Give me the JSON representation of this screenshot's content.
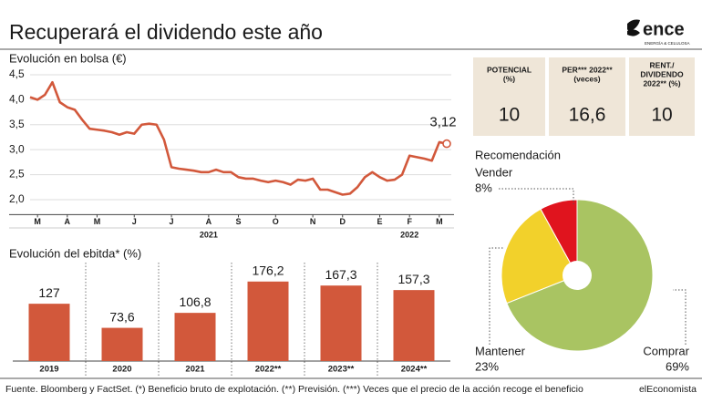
{
  "title": "Recuperará el dividendo este año",
  "logo": {
    "name": "ence",
    "tagline": "ENERGÍA & CELULOSA"
  },
  "metrics": [
    {
      "label": [
        "POTENCIAL",
        "(%)"
      ],
      "value": "10"
    },
    {
      "label": [
        "PER*** 2022**",
        "(veces)"
      ],
      "value": "16,6"
    },
    {
      "label": [
        "RENT./",
        "DIVIDENDO",
        "2022** (%)"
      ],
      "value": "10"
    }
  ],
  "footer": {
    "source": "Fuente. Bloomberg y FactSet. (*) Beneficio bruto de explotación. (**) Previsión. (***) Veces que el precio de la acción recoge el beneficio",
    "brand": "elEconomista"
  },
  "chart_data": [
    {
      "type": "line",
      "title": "Evolución en bolsa (€)",
      "color": "#d2583b",
      "grid": true,
      "values": [
        4.05,
        4.0,
        4.1,
        4.35,
        3.95,
        3.85,
        3.8,
        3.6,
        3.42,
        3.4,
        3.38,
        3.35,
        3.3,
        3.35,
        3.32,
        3.5,
        3.52,
        3.5,
        3.2,
        2.65,
        2.62,
        2.6,
        2.58,
        2.55,
        2.55,
        2.6,
        2.55,
        2.55,
        2.45,
        2.42,
        2.42,
        2.38,
        2.35,
        2.38,
        2.35,
        2.3,
        2.4,
        2.38,
        2.42,
        2.2,
        2.2,
        2.15,
        2.1,
        2.12,
        2.25,
        2.45,
        2.55,
        2.45,
        2.38,
        2.4,
        2.5,
        2.88,
        2.85,
        2.82,
        2.78,
        3.15,
        3.12
      ],
      "last_label": "3,12",
      "xlim": [
        0,
        56
      ],
      "xticks": [
        {
          "value": 1,
          "label": "M"
        },
        {
          "value": 5,
          "label": "A"
        },
        {
          "value": 9,
          "label": "M"
        },
        {
          "value": 14,
          "label": "J"
        },
        {
          "value": 19,
          "label": "J"
        },
        {
          "value": 24,
          "label": "A"
        },
        {
          "value": 28,
          "label": "S"
        },
        {
          "value": 33,
          "label": "O"
        },
        {
          "value": 38,
          "label": "N"
        },
        {
          "value": 42,
          "label": "D"
        },
        {
          "value": 47,
          "label": "E"
        },
        {
          "value": 51,
          "label": "F"
        },
        {
          "value": 55,
          "label": "M"
        }
      ],
      "year_ticks": [
        {
          "value": 24,
          "label": "2021"
        },
        {
          "value": 51,
          "label": "2022"
        }
      ],
      "ylim": [
        1.7,
        4.6
      ],
      "yticks": [
        {
          "value": 2.0,
          "label": "2,0"
        },
        {
          "value": 2.5,
          "label": "2,5"
        },
        {
          "value": 3.0,
          "label": "3,0"
        },
        {
          "value": 3.5,
          "label": "3,5"
        },
        {
          "value": 4.0,
          "label": "4,0"
        },
        {
          "value": 4.5,
          "label": "4,5"
        }
      ]
    },
    {
      "type": "bar",
      "title": "Evolución del ebitda* (%)",
      "color": "#d2583b",
      "categories": [
        "2019",
        "2020",
        "2021",
        "2022**",
        "2023**",
        "2024**"
      ],
      "values": [
        127,
        73.6,
        106.8,
        176.2,
        167.3,
        157.3
      ],
      "value_labels": [
        "127",
        "73,6",
        "106,8",
        "176,2",
        "167,3",
        "157,3"
      ],
      "ylim": [
        0,
        200
      ]
    },
    {
      "type": "pie",
      "title": "Recomendación",
      "categories": [
        "Comprar",
        "Mantener",
        "Vender"
      ],
      "values": [
        69,
        23,
        8
      ],
      "value_labels": [
        "69%",
        "23%",
        "8%"
      ],
      "colors": [
        "#a9c462",
        "#f2d12b",
        "#e0141e"
      ]
    }
  ]
}
